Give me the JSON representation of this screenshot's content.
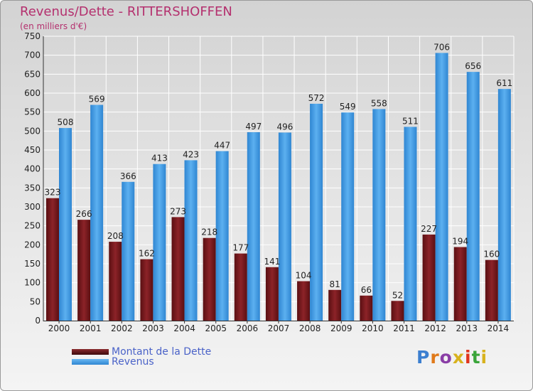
{
  "title": "Revenus/Dette - RITTERSHOFFEN",
  "subtitle": "(en milliers d'€)",
  "logo_text": "Proxiti",
  "chart_data": {
    "type": "bar",
    "categories": [
      "2000",
      "2001",
      "2002",
      "2003",
      "2004",
      "2005",
      "2006",
      "2007",
      "2008",
      "2009",
      "2010",
      "2011",
      "2012",
      "2013",
      "2014"
    ],
    "series": [
      {
        "name": "Montant de la Dette",
        "color": "#7a1a1e",
        "values": [
          323,
          266,
          208,
          162,
          273,
          218,
          177,
          141,
          104,
          81,
          66,
          52,
          227,
          194,
          160
        ]
      },
      {
        "name": "Revenus",
        "color": "#3e9ae4",
        "values": [
          508,
          569,
          366,
          413,
          423,
          447,
          497,
          496,
          572,
          549,
          558,
          511,
          706,
          656,
          611
        ]
      }
    ],
    "ylim": [
      0,
      750
    ],
    "yticks": [
      0,
      50,
      100,
      150,
      200,
      250,
      300,
      350,
      400,
      450,
      500,
      550,
      600,
      650,
      700,
      750
    ],
    "grid": true,
    "legend_position": "bottom-left"
  }
}
